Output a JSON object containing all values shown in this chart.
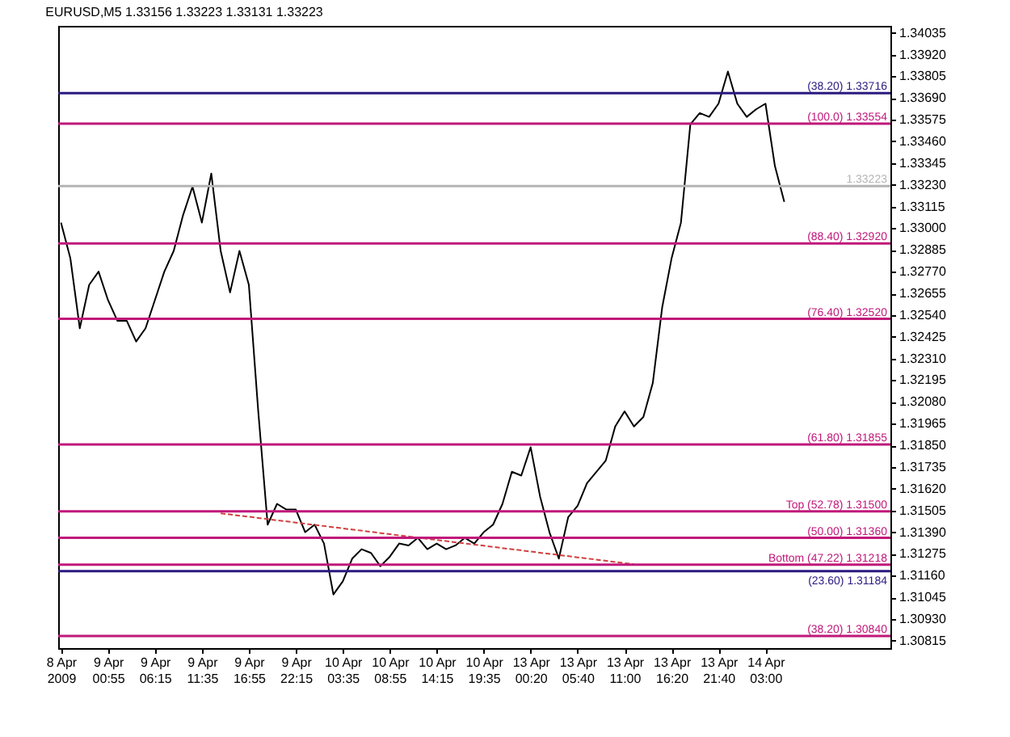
{
  "chart_data": {
    "type": "line",
    "title": "EURUSD,M5  1.33156 1.33223 1.33131 1.33223",
    "categories": [
      "8 Apr 2009",
      null,
      null,
      null,
      null,
      "9 Apr 00:55",
      null,
      null,
      null,
      null,
      "9 Apr 06:15",
      null,
      null,
      null,
      null,
      "9 Apr 11:35",
      null,
      null,
      null,
      null,
      "9 Apr 16:55",
      null,
      null,
      null,
      null,
      "9 Apr 22:15",
      null,
      null,
      null,
      null,
      "10 Apr 03:35",
      null,
      null,
      null,
      null,
      "10 Apr 08:55",
      null,
      null,
      null,
      null,
      "10 Apr 14:15",
      null,
      null,
      null,
      null,
      "10 Apr 19:35",
      null,
      null,
      null,
      null,
      "13 Apr 00:20",
      null,
      null,
      null,
      null,
      "13 Apr 05:40",
      null,
      null,
      null,
      null,
      "13 Apr 11:00",
      null,
      null,
      null,
      null,
      "13 Apr 16:20",
      null,
      null,
      null,
      null,
      "13 Apr 21:40",
      null,
      null,
      null,
      null,
      "14 Apr 03:00",
      null,
      null,
      null,
      null,
      null,
      null,
      null,
      null,
      null,
      null,
      null,
      null,
      null
    ],
    "series": [
      {
        "type": "line",
        "color": "#000000",
        "line_style": "solid",
        "values": [
          1.3303,
          1.3284,
          1.3247,
          1.327,
          1.3277,
          1.3262,
          1.3251,
          1.3251,
          1.324,
          1.3247,
          1.3262,
          1.3277,
          1.3288,
          1.3307,
          1.3322,
          1.3303,
          1.3329,
          1.3288,
          1.3266,
          1.3288,
          1.327,
          1.3203,
          1.3143,
          1.3154,
          1.3151,
          1.3151,
          1.3139,
          1.3143,
          1.3133,
          1.3106,
          1.3113,
          1.3125,
          1.313,
          1.3128,
          1.3121,
          1.3126,
          1.3133,
          1.3132,
          1.3136,
          1.313,
          1.3133,
          1.313,
          1.3132,
          1.3136,
          1.3133,
          1.3139,
          1.3143,
          1.3154,
          1.3171,
          1.3169,
          1.3184,
          1.3158,
          1.3139,
          1.3125,
          1.3147,
          1.3153,
          1.3165,
          1.3171,
          1.3177,
          1.3195,
          1.3203,
          1.3195,
          1.32,
          1.3218,
          1.3258,
          1.3284,
          1.3303,
          1.3355,
          1.3361,
          1.3359,
          1.3366,
          1.3383,
          1.3366,
          1.3359,
          1.3363,
          1.3366,
          1.3333,
          1.3314,
          null,
          null,
          null,
          null,
          null,
          null,
          null,
          null,
          null,
          null,
          null
        ]
      },
      {
        "type": "line",
        "color": "#d04040",
        "line_style": "dotted",
        "values": [
          null,
          null,
          null,
          null,
          null,
          null,
          null,
          null,
          null,
          null,
          null,
          null,
          null,
          null,
          null,
          null,
          null,
          1.3149,
          null,
          null,
          null,
          null,
          null,
          null,
          null,
          null,
          null,
          null,
          null,
          null,
          null,
          null,
          null,
          null,
          null,
          null,
          null,
          null,
          null,
          null,
          null,
          null,
          null,
          null,
          null,
          null,
          null,
          null,
          null,
          null,
          null,
          null,
          null,
          null,
          null,
          null,
          null,
          null,
          null,
          null,
          null,
          1.3122,
          null,
          null,
          null,
          null,
          null,
          null,
          null,
          null,
          null,
          null,
          null,
          null,
          null,
          null,
          null,
          null,
          null,
          null,
          null,
          null,
          null,
          null,
          null,
          null,
          null,
          null,
          null
        ]
      }
    ],
    "ylim": [
      1.30776,
      1.34072
    ],
    "yticks": [
      1.30815,
      {
        "value": 1.3093,
        "label": "1.30930"
      },
      1.31045,
      {
        "value": 1.3116,
        "label": "1.31160"
      },
      1.31275,
      {
        "value": 1.3139,
        "label": "1.31390"
      },
      1.31505,
      {
        "value": 1.3162,
        "label": "1.31620"
      },
      1.31735,
      {
        "value": 1.3185,
        "label": "1.31850"
      },
      1.31965,
      {
        "value": 1.3208,
        "label": "1.32080"
      },
      1.32195,
      {
        "value": 1.3231,
        "label": "1.32310"
      },
      1.32425,
      {
        "value": 1.3254,
        "label": "1.32540"
      },
      1.32655,
      {
        "value": 1.3277,
        "label": "1.32770"
      },
      1.32885,
      {
        "value": 1.33,
        "label": "1.33000"
      },
      1.33115,
      {
        "value": 1.3323,
        "label": "1.33230"
      },
      1.33345,
      {
        "value": 1.3346,
        "label": "1.33460"
      },
      1.33575,
      {
        "value": 1.3369,
        "label": "1.33690"
      },
      1.33805,
      {
        "value": 1.3392,
        "label": "1.33920"
      },
      1.34035
    ],
    "ref_lines": [
      {
        "axis": "y",
        "value": 1.33716,
        "label": "(38.20) 1.33716",
        "color": "#2a1a80"
      },
      {
        "axis": "y",
        "value": 1.33554,
        "label": "(100.0) 1.33554",
        "color": "#c0187a"
      },
      {
        "axis": "y",
        "value": 1.33223,
        "label": "1.33223",
        "color": "#b4b4b4"
      },
      {
        "axis": "y",
        "value": 1.3292,
        "label": "(88.40) 1.32920",
        "color": "#c0187a"
      },
      {
        "axis": "y",
        "value": 1.3252,
        "label": "(76.40) 1.32520",
        "color": "#c0187a"
      },
      {
        "axis": "y",
        "value": 1.31855,
        "label": "(61.80) 1.31855",
        "color": "#c0187a"
      },
      {
        "axis": "y",
        "value": 1.315,
        "label": "Top (52.78) 1.31500",
        "color": "#c0187a"
      },
      {
        "axis": "y",
        "value": 1.3136,
        "label": "(50.00) 1.31360",
        "color": "#c0187a"
      },
      {
        "axis": "y",
        "value": 1.31218,
        "label": "Bottom (47.22) 1.31218",
        "color": "#c0187a"
      },
      {
        "axis": "y",
        "value": 1.31184,
        "label": "(23.60) 1.31184",
        "color": "#2a1a80"
      },
      {
        "axis": "y",
        "value": 1.3084,
        "label": "(38.20) 1.30840",
        "color": "#c0187a"
      }
    ]
  }
}
